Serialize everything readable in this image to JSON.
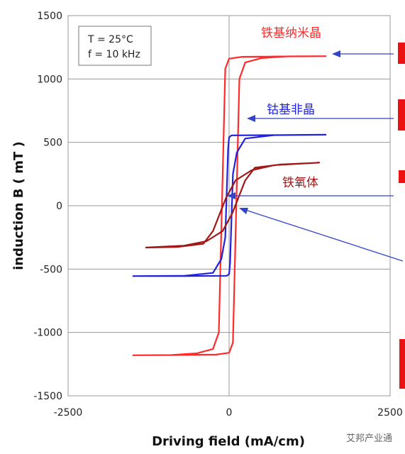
{
  "chart_data": {
    "type": "line",
    "title": "",
    "xlabel": "Driving field (mA/cm)",
    "ylabel": "induction B ( mT )",
    "xlim": [
      -2500,
      2500
    ],
    "ylim": [
      -1500,
      1500
    ],
    "x_ticks": [
      "-2500",
      "0",
      "2500"
    ],
    "y_ticks": [
      "1500",
      "1000",
      "500",
      "0",
      "-500",
      "-1000",
      "-1500"
    ],
    "grid": true,
    "conditions": [
      "T = 25°C",
      "f = 10 kHz"
    ],
    "series": [
      {
        "name": "铁基纳米晶",
        "color": "#ff2a2a",
        "saturation_mT": 1180,
        "coercivity_mA_cm": 120,
        "hmax_mA_cm": 1500,
        "points": [
          [
            -1500,
            -1180
          ],
          [
            -900,
            -1178
          ],
          [
            -500,
            -1165
          ],
          [
            -250,
            -1130
          ],
          [
            -160,
            -1000
          ],
          [
            -60,
            1080
          ],
          [
            0,
            1160
          ],
          [
            200,
            1175
          ],
          [
            900,
            1178
          ],
          [
            1500,
            1180
          ],
          [
            900,
            1178
          ],
          [
            500,
            1165
          ],
          [
            250,
            1130
          ],
          [
            160,
            1000
          ],
          [
            60,
            -1080
          ],
          [
            0,
            -1160
          ],
          [
            -200,
            -1175
          ],
          [
            -900,
            -1178
          ],
          [
            -1500,
            -1180
          ]
        ]
      },
      {
        "name": "钴基非晶",
        "color": "#2222dd",
        "saturation_mT": 560,
        "coercivity_mA_cm": 30,
        "hmax_mA_cm": 1500,
        "points": [
          [
            -1500,
            -555
          ],
          [
            -700,
            -553
          ],
          [
            -250,
            -530
          ],
          [
            -120,
            -420
          ],
          [
            -60,
            -250
          ],
          [
            -15,
            450
          ],
          [
            0,
            540
          ],
          [
            40,
            555
          ],
          [
            700,
            557
          ],
          [
            1500,
            560
          ],
          [
            700,
            557
          ],
          [
            250,
            530
          ],
          [
            120,
            420
          ],
          [
            60,
            250
          ],
          [
            15,
            -450
          ],
          [
            0,
            -540
          ],
          [
            -40,
            -553
          ],
          [
            -700,
            -555
          ],
          [
            -1500,
            -555
          ]
        ]
      },
      {
        "name": "铁氧体",
        "color": "#a01818",
        "saturation_mT": 340,
        "coercivity_mA_cm": 450,
        "hmax_mA_cm": 1500,
        "points": [
          [
            -1300,
            -330
          ],
          [
            -700,
            -315
          ],
          [
            -350,
            -280
          ],
          [
            -100,
            -200
          ],
          [
            50,
            -60
          ],
          [
            250,
            200
          ],
          [
            400,
            300
          ],
          [
            800,
            325
          ],
          [
            1400,
            340
          ],
          [
            700,
            320
          ],
          [
            350,
            280
          ],
          [
            100,
            200
          ],
          [
            -50,
            60
          ],
          [
            -250,
            -200
          ],
          [
            -400,
            -300
          ],
          [
            -800,
            -325
          ],
          [
            -1300,
            -330
          ]
        ]
      }
    ]
  },
  "watermark": "艾邦产业通"
}
